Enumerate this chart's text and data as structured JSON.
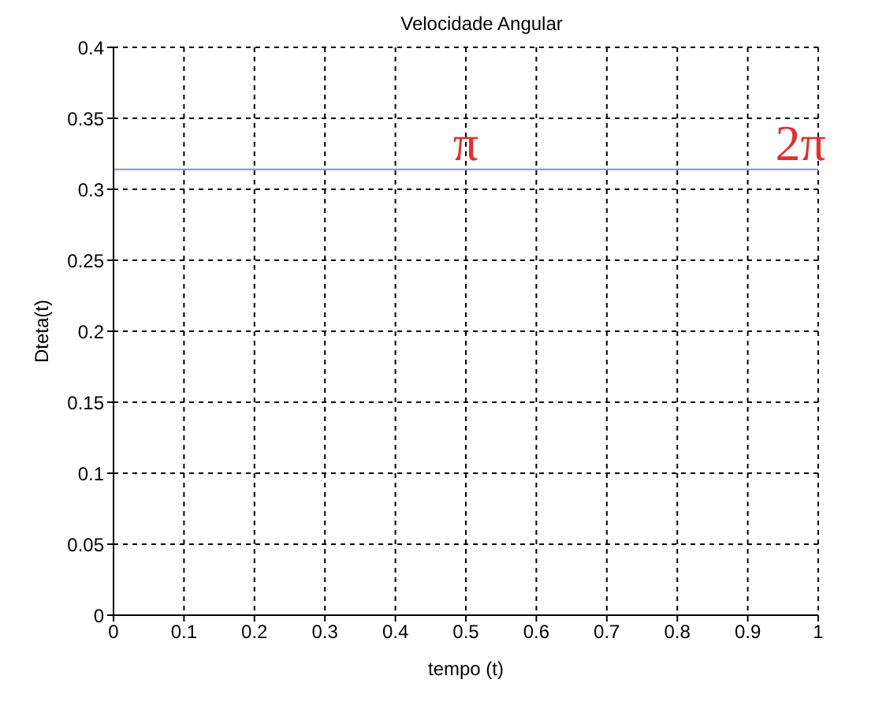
{
  "chart_data": {
    "type": "line",
    "title": "Velocidade Angular",
    "xlabel": "tempo (t)",
    "ylabel": "Dteta(t)",
    "x": [
      0,
      1
    ],
    "series": [
      {
        "color": "#8888dd",
        "values": [
          0.314,
          0.314
        ]
      }
    ],
    "xlim": [
      0,
      1
    ],
    "xticks": [
      0,
      0.1,
      0.2,
      0.3,
      0.4,
      0.5,
      0.6,
      0.7,
      0.8,
      0.9,
      1
    ],
    "ylim": [
      0,
      0.4
    ],
    "yticks": [
      0,
      0.05,
      0.1,
      0.15,
      0.2,
      0.25,
      0.3,
      0.35,
      0.4
    ],
    "grid": true,
    "marker": "none",
    "line_style": "solid",
    "annotations": [
      {
        "text": "π",
        "x": 0.5,
        "y": 0.314
      },
      {
        "text": "2π",
        "x": 0.975,
        "y": 0.314
      }
    ]
  }
}
